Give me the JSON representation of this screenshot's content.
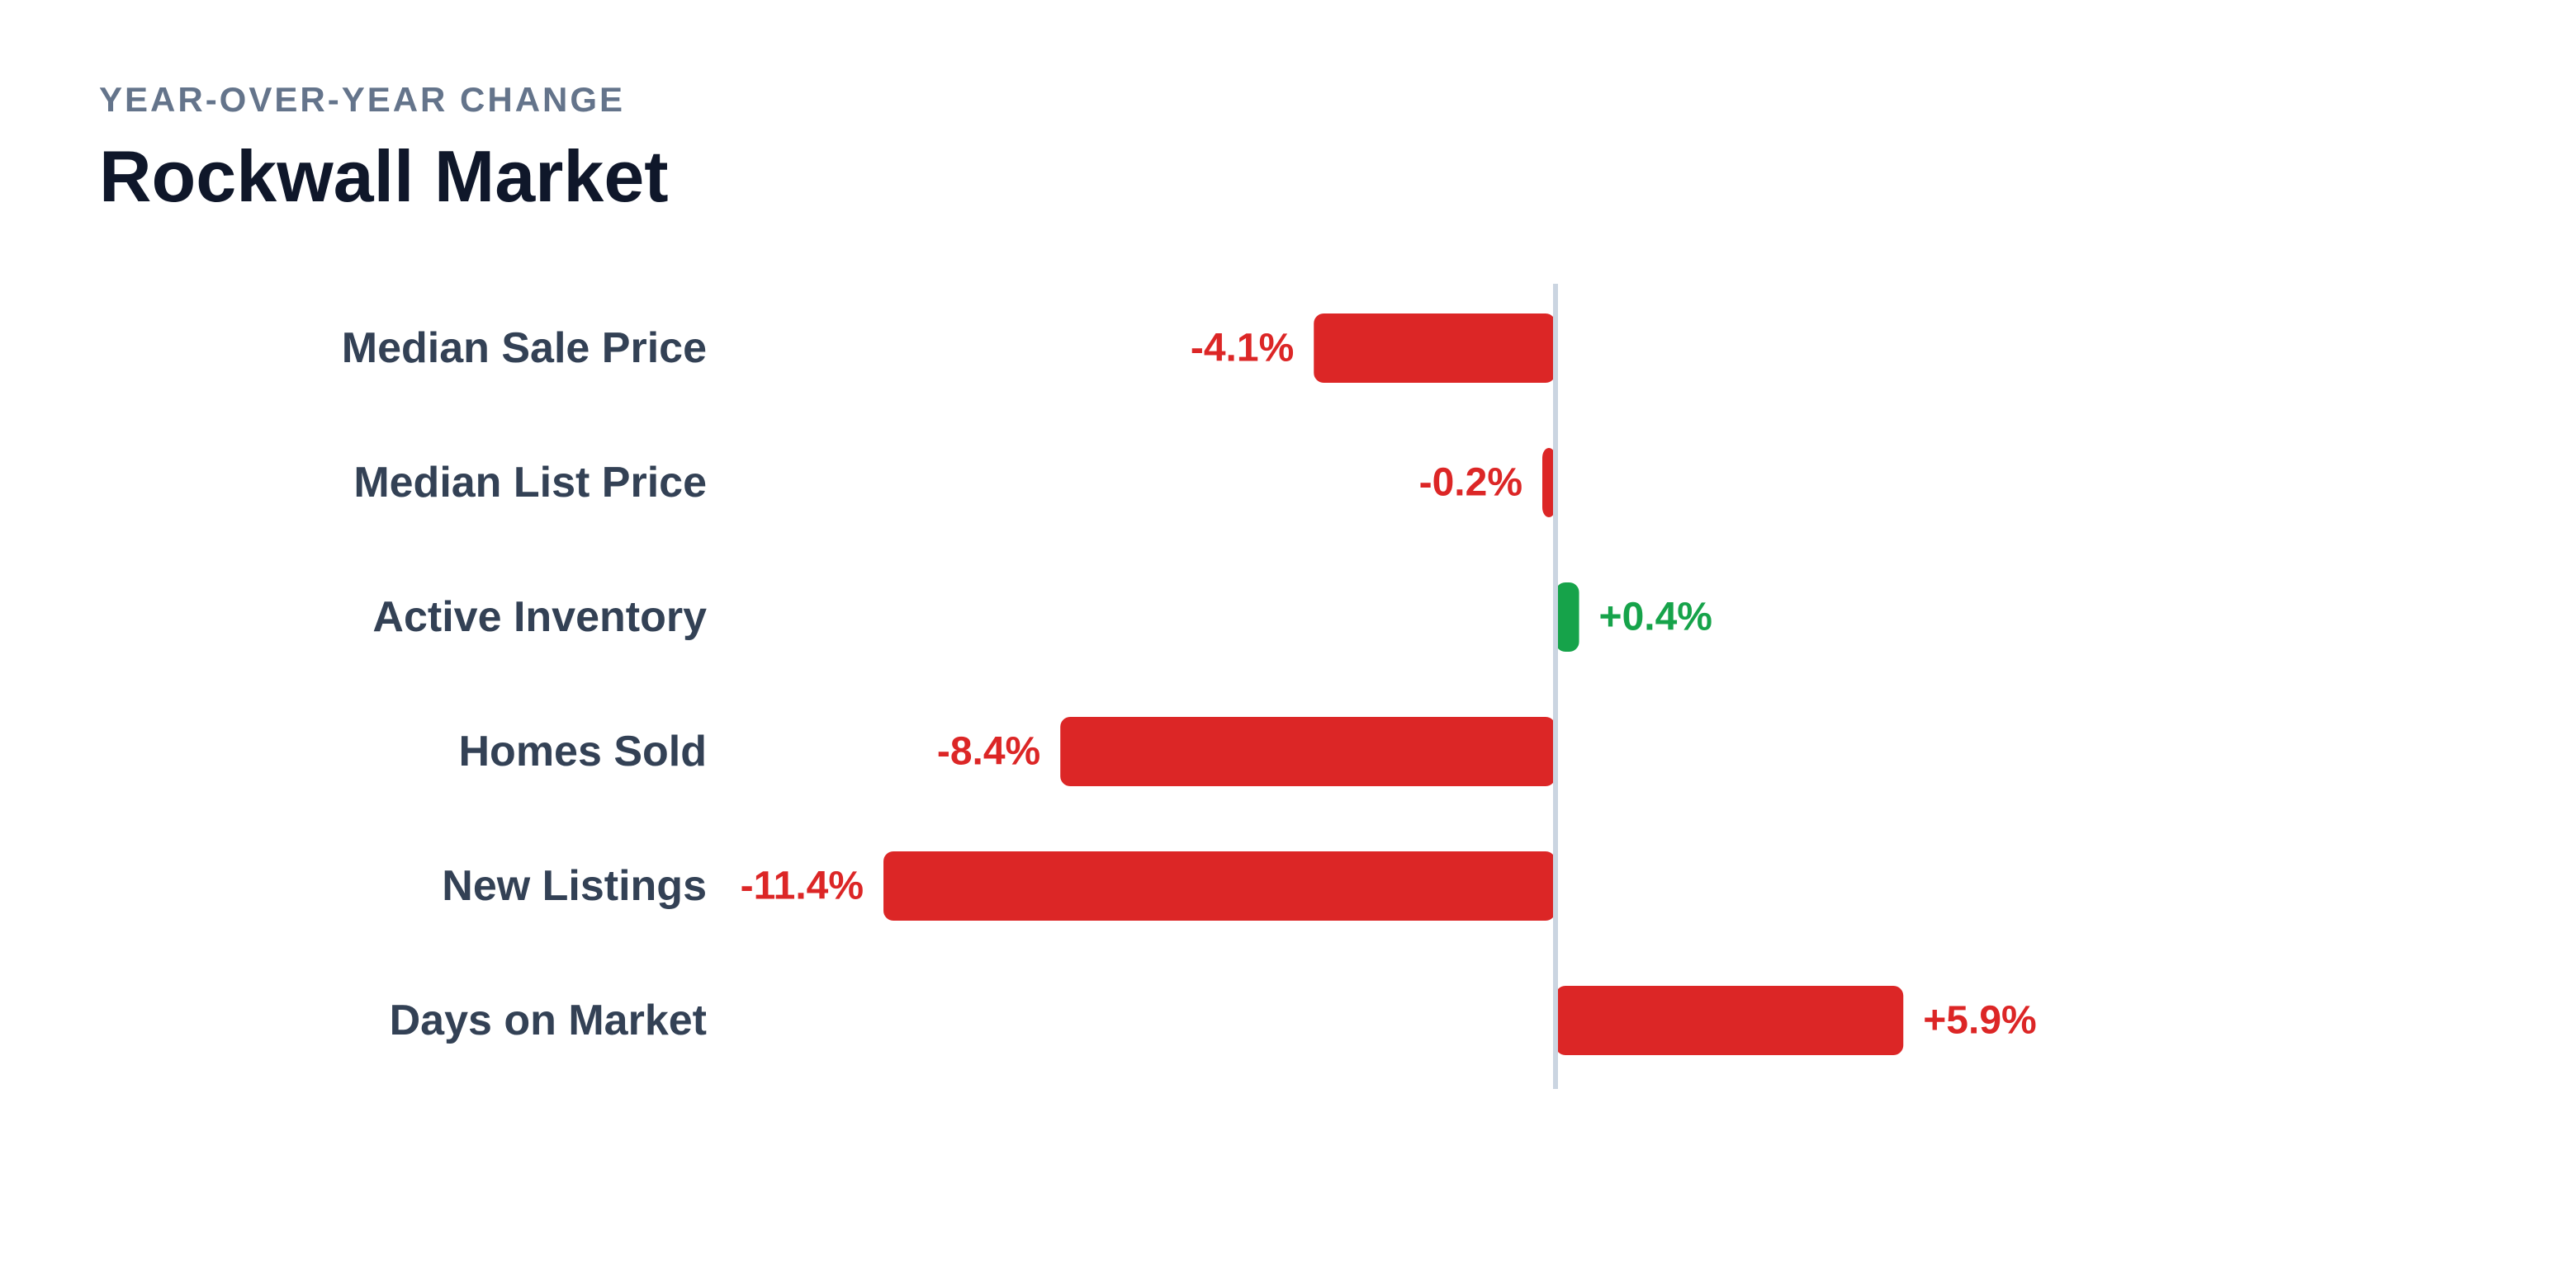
{
  "header": {
    "eyebrow": "YEAR-OVER-YEAR CHANGE",
    "title": "Rockwall Market"
  },
  "colors": {
    "negative_bad": "#dc2626",
    "positive_good": "#16a34a",
    "zero_line": "#cbd5e1",
    "category_text": "#334155"
  },
  "chart_data": {
    "type": "bar",
    "orientation": "horizontal",
    "title": "Rockwall Market",
    "subtitle": "YEAR-OVER-YEAR CHANGE",
    "xlabel": "",
    "ylabel": "",
    "grid": false,
    "categories": [
      "Median Sale Price",
      "Median List Price",
      "Active Inventory",
      "Homes Sold",
      "New Listings",
      "Days on Market"
    ],
    "values": [
      -4.1,
      -0.2,
      0.4,
      -8.4,
      -11.4,
      5.9
    ],
    "value_labels": [
      "-4.1%",
      "-0.2%",
      "+0.4%",
      "-8.4%",
      "-11.4%",
      "+5.9%"
    ],
    "sentiment": [
      "bad",
      "bad",
      "good",
      "bad",
      "bad",
      "bad"
    ],
    "xlim": [
      -11.4,
      11.4
    ]
  }
}
